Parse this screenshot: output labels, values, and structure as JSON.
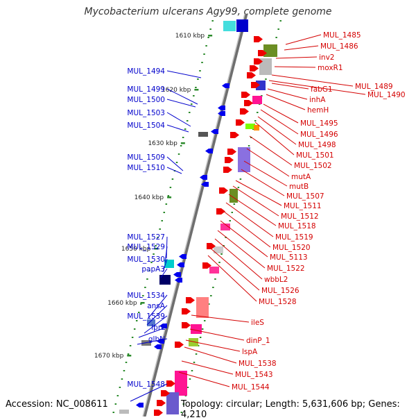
{
  "title": "Mycobacterium ulcerans Agy99, complete genome",
  "accession": "Accession: NC_008611",
  "summary": "Topology: circular; Length: 5,631,606 bp; Genes: 4,210",
  "colors": {
    "forward_label": "#d40000",
    "reverse_label": "#0000cc",
    "backbone": "#999999",
    "tick": "#2a8a2a",
    "reverse_gene": "#0000ee",
    "forward_gene": "#ee0000"
  },
  "scale_marks": [
    "1610 kbp",
    "1620 kbp",
    "1630 kbp",
    "1640 kbp",
    "1650 kbp",
    "1660 kbp",
    "1670 kbp"
  ],
  "reverse_genes": [
    "MUL_1494",
    "MUL_1499",
    "MUL_1500",
    "MUL_1503",
    "MUL_1504",
    "MUL_1509",
    "MUL_1510",
    "MUL_1527",
    "MUL_1529",
    "MUL_1530",
    "papA3",
    "MUL_1534",
    "ansA",
    "MUL_1539",
    "lprL",
    "glbN",
    "MUL_1548"
  ],
  "forward_genes": [
    "MUL_1485",
    "MUL_1486",
    "inv2",
    "moxR1",
    "MUL_1489",
    "MUL_1490",
    "fabG1",
    "inhA",
    "hemH",
    "MUL_1495",
    "MUL_1496",
    "MUL_1498",
    "MUL_1501",
    "MUL_1502",
    "mutA",
    "mutB",
    "MUL_1507",
    "MUL_1511",
    "MUL_1512",
    "MUL_1518",
    "MUL_1519",
    "MUL_1520",
    "MUL_5113",
    "MUL_1522",
    "wbbL2",
    "MUL_1526",
    "MUL_1528",
    "ileS",
    "dinP_1",
    "lspA",
    "MUL_1538",
    "MUL_1543",
    "MUL_1544"
  ]
}
